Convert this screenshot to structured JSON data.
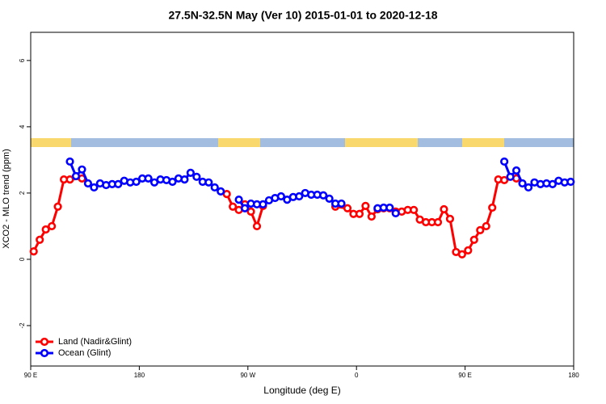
{
  "chart_data": {
    "type": "line",
    "title": "27.5N-32.5N May (Ver 10)   2015-01-01 to 2020-12-18",
    "x_label": "Longitude (deg E)",
    "y_label": "XCO2 - MLO trend (ppm)",
    "xlim": [
      90,
      540
    ],
    "xticks": [
      {
        "value": 90,
        "label": "90 E"
      },
      180,
      {
        "value": 270,
        "label": "90 W"
      },
      {
        "value": 360,
        "label": "0"
      },
      {
        "value": 450,
        "label": "90 E"
      },
      {
        "value": 540,
        "label": "180"
      }
    ],
    "ylim": [
      -3.22,
      6.85
    ],
    "yticks": [
      -2,
      0,
      2,
      4,
      6
    ],
    "legend": "bottom-left",
    "series": [
      {
        "name": "Land (Nadir&Glint)",
        "color": "#ff0000",
        "x": [
          92.5,
          97.5,
          102.5,
          107.5,
          112.5,
          117.5,
          122.5,
          132.5,
          137.5,
          252.5,
          257.5,
          262.5,
          267.5,
          272.5,
          277.5,
          282.5,
          287.5,
          342.5,
          352.5,
          357.5,
          362.5,
          367.5,
          372.5,
          377.5,
          382.5,
          387.5,
          392.5,
          397.5,
          402.5,
          407.5,
          412.5,
          417.5,
          422.5,
          427.5,
          432.5,
          437.5,
          442.5,
          447.5,
          452.5,
          457.5,
          462.5,
          467.5,
          472.5,
          477.5,
          482.5,
          492.5
        ],
        "values": [
          0.24,
          0.59,
          0.9,
          1.0,
          1.59,
          2.41,
          2.41,
          2.44,
          null,
          1.97,
          1.59,
          1.49,
          1.66,
          1.44,
          1.0,
          1.61,
          null,
          1.59,
          1.54,
          1.37,
          1.37,
          1.61,
          1.29,
          1.51,
          1.54,
          1.54,
          1.44,
          1.44,
          1.49,
          1.49,
          1.2,
          1.12,
          1.12,
          1.12,
          1.51,
          1.22,
          0.22,
          0.15,
          0.27,
          0.59,
          0.88,
          1.0,
          1.56,
          2.41,
          2.39,
          2.44
        ]
      },
      {
        "name": "Ocean (Glint)",
        "color": "#0000ff",
        "x": [
          122.5,
          127.5,
          132.5,
          137.5,
          142.5,
          147.5,
          152.5,
          157.5,
          162.5,
          167.5,
          172.5,
          177.5,
          182.5,
          187.5,
          192.5,
          197.5,
          202.5,
          207.5,
          212.5,
          217.5,
          222.5,
          227.5,
          232.5,
          237.5,
          242.5,
          247.5,
          252.5,
          262.5,
          267.5,
          272.5,
          277.5,
          282.5,
          287.5,
          292.5,
          297.5,
          302.5,
          307.5,
          312.5,
          317.5,
          322.5,
          327.5,
          332.5,
          337.5,
          342.5,
          347.5,
          352.5,
          377.5,
          382.5,
          387.5,
          392.5,
          397.5,
          482.5,
          487.5,
          492.5,
          497.5,
          502.5,
          507.5,
          512.5,
          517.5,
          522.5,
          527.5,
          532.5,
          537.5
        ],
        "values": [
          2.95,
          2.51,
          2.71,
          2.29,
          2.17,
          2.29,
          2.24,
          2.27,
          2.27,
          2.37,
          2.32,
          2.34,
          2.44,
          2.44,
          2.32,
          2.41,
          2.39,
          2.34,
          2.44,
          2.41,
          2.61,
          2.49,
          2.34,
          2.32,
          2.17,
          2.05,
          null,
          1.8,
          1.54,
          1.68,
          1.66,
          1.66,
          1.78,
          1.85,
          1.9,
          1.8,
          1.88,
          1.9,
          2.0,
          1.95,
          1.95,
          1.93,
          1.83,
          1.68,
          1.68,
          null,
          1.54,
          1.56,
          1.56,
          1.39,
          null,
          2.95,
          2.49,
          2.68,
          2.29,
          2.17,
          2.32,
          2.27,
          2.29,
          2.27,
          2.37,
          2.32,
          2.34
        ]
      }
    ]
  }
}
